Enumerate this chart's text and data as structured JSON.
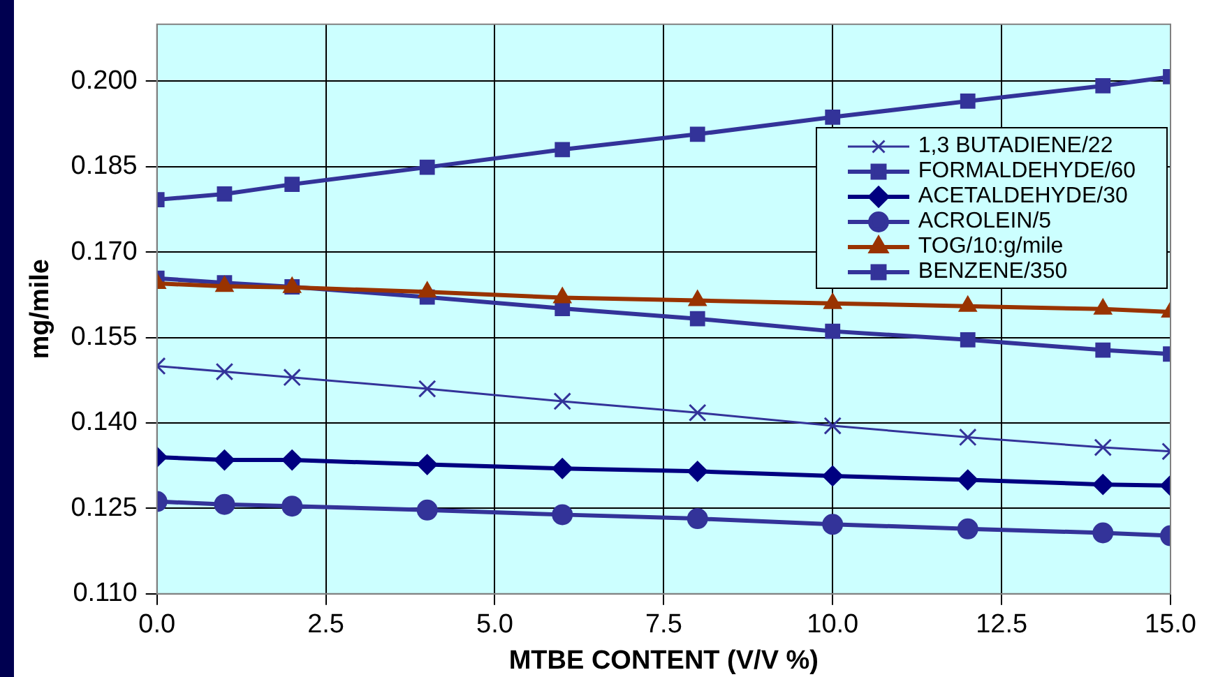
{
  "chart_data": {
    "type": "line",
    "xlabel": "MTBE CONTENT (V/V %)",
    "ylabel": "mg/mile",
    "x": [
      0,
      1,
      2,
      4,
      6,
      8,
      10,
      12,
      14,
      15
    ],
    "xlim": [
      0,
      15
    ],
    "xticks": [
      {
        "value": 0,
        "label": "0.0"
      },
      {
        "value": 2.5,
        "label": "2.5"
      },
      {
        "value": 5,
        "label": "5.0"
      },
      {
        "value": 7.5,
        "label": "7.5"
      },
      {
        "value": 10,
        "label": "10.0"
      },
      {
        "value": 12.5,
        "label": "12.5"
      },
      {
        "value": 15,
        "label": "15.0"
      }
    ],
    "ylim": [
      0.11,
      0.21
    ],
    "yticks": [
      {
        "value": 0.11,
        "label": "0.110"
      },
      {
        "value": 0.125,
        "label": "0.125"
      },
      {
        "value": 0.14,
        "label": "0.140"
      },
      {
        "value": 0.155,
        "label": "0.155"
      },
      {
        "value": 0.17,
        "label": "0.170"
      },
      {
        "value": 0.185,
        "label": "0.185"
      },
      {
        "value": 0.2,
        "label": "0.200"
      }
    ],
    "grid": true,
    "legend": "top right",
    "line_style": "solid",
    "series": [
      {
        "name": "1,3 BUTADIENE/22",
        "color": "#333399",
        "marker": "cross",
        "values": [
          0.15,
          0.149,
          0.148,
          0.146,
          0.1438,
          0.1418,
          0.1395,
          0.1375,
          0.1357,
          0.135
        ]
      },
      {
        "name": "FORMALDEHYDE/60",
        "color": "#333399",
        "marker": "square",
        "values": [
          0.1792,
          0.1802,
          0.1819,
          0.1849,
          0.188,
          0.1907,
          0.1937,
          0.1965,
          0.1992,
          0.2008
        ]
      },
      {
        "name": "ACETALDEHYDE/30",
        "color": "#000080",
        "marker": "diamond",
        "values": [
          0.134,
          0.1335,
          0.1335,
          0.1327,
          0.132,
          0.1315,
          0.1307,
          0.13,
          0.1292,
          0.129
        ]
      },
      {
        "name": "ACROLEIN/5",
        "color": "#333399",
        "marker": "circle",
        "values": [
          0.1262,
          0.1257,
          0.1254,
          0.1247,
          0.1239,
          0.1232,
          0.1222,
          0.1214,
          0.1207,
          0.1202
        ]
      },
      {
        "name": "TOG/10:g/mile",
        "color": "#993300",
        "marker": "triangle",
        "values": [
          0.1645,
          0.164,
          0.1638,
          0.163,
          0.162,
          0.1615,
          0.161,
          0.1605,
          0.16,
          0.1595
        ]
      },
      {
        "name": "BENZENE/350",
        "color": "#333399",
        "marker": "square",
        "values": [
          0.1654,
          0.1646,
          0.1639,
          0.1621,
          0.1601,
          0.1583,
          0.1561,
          0.1546,
          0.1528,
          0.1521
        ]
      }
    ]
  }
}
